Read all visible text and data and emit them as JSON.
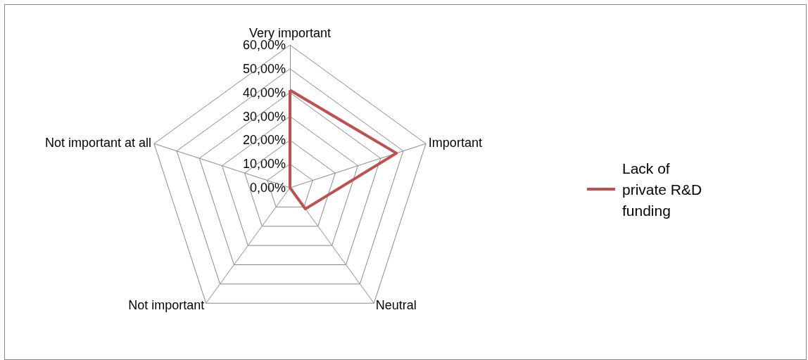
{
  "chart_data": {
    "type": "radar",
    "categories": [
      "Very important",
      "Important",
      "Neutral",
      "Not important",
      "Not important at all"
    ],
    "series": [
      {
        "name": "Lack of private R&D funding",
        "color": "#c0504d",
        "values": [
          41,
          47,
          11,
          0,
          0
        ]
      }
    ],
    "ylim": [
      0,
      60
    ],
    "yticks": [
      {
        "value": 0,
        "label": "0,00%"
      },
      {
        "value": 10,
        "label": "10,00%"
      },
      {
        "value": 20,
        "label": "20,00%"
      },
      {
        "value": 30,
        "label": "30,00%"
      },
      {
        "value": 40,
        "label": "40,00%"
      },
      {
        "value": 50,
        "label": "50,00%"
      },
      {
        "value": 60,
        "label": "60,00%"
      }
    ],
    "grid": true,
    "legend": "right",
    "marker": "none",
    "line_style": "solid"
  }
}
